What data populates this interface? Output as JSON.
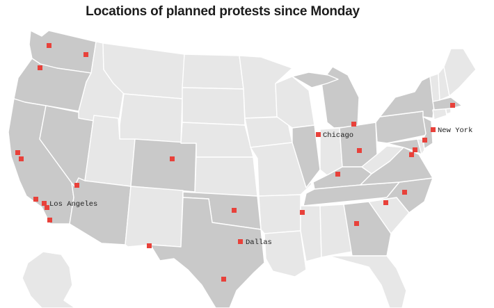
{
  "title": "Locations of planned protests since Monday",
  "colors": {
    "background": "#ffffff",
    "state_default": "#e7e7e7",
    "state_with_protest": "#c9c9c9",
    "state_border": "#ffffff",
    "marker": "#e8413a",
    "text": "#1c1c1c"
  },
  "states_with_protests": [
    "WA",
    "OR",
    "CA",
    "NV",
    "AZ",
    "CO",
    "TX",
    "OK",
    "IL",
    "MI",
    "OH",
    "KY",
    "TN",
    "GA",
    "NC",
    "VA",
    "MD",
    "PA",
    "NJ",
    "NY",
    "MA"
  ],
  "labels": {
    "los_angeles": "Los Angeles",
    "chicago": "Chicago",
    "new_york": "New York",
    "dallas": "Dallas"
  }
}
